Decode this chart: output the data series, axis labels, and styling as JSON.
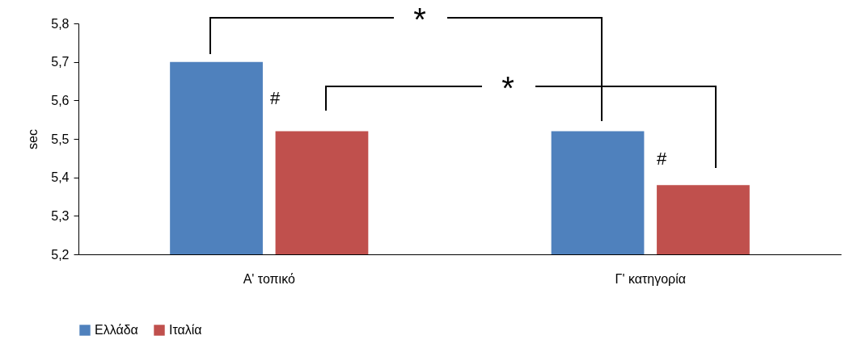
{
  "chart_data": {
    "type": "bar",
    "ylabel": "sec",
    "categories": [
      "Α' τοπικό",
      "Γ' κατηγορία"
    ],
    "series": [
      {
        "name": "Ελλάδα",
        "color": "#4f81bd",
        "values": [
          5.7,
          5.52
        ]
      },
      {
        "name": "Ιταλία",
        "color": "#c0504d",
        "values": [
          5.52,
          5.38
        ]
      }
    ],
    "ylim": [
      5.2,
      5.8
    ],
    "yticks": [
      {
        "value": 5.2,
        "label": "5,2"
      },
      {
        "value": 5.3,
        "label": "5,3"
      },
      {
        "value": 5.4,
        "label": "5,4"
      },
      {
        "value": 5.5,
        "label": "5,5"
      },
      {
        "value": 5.6,
        "label": "5,6"
      },
      {
        "value": 5.7,
        "label": "5,7"
      },
      {
        "value": 5.8,
        "label": "5,8"
      }
    ],
    "annotations": [
      "*",
      "*",
      "#",
      "#"
    ],
    "legend": "bottom",
    "grid": false
  }
}
